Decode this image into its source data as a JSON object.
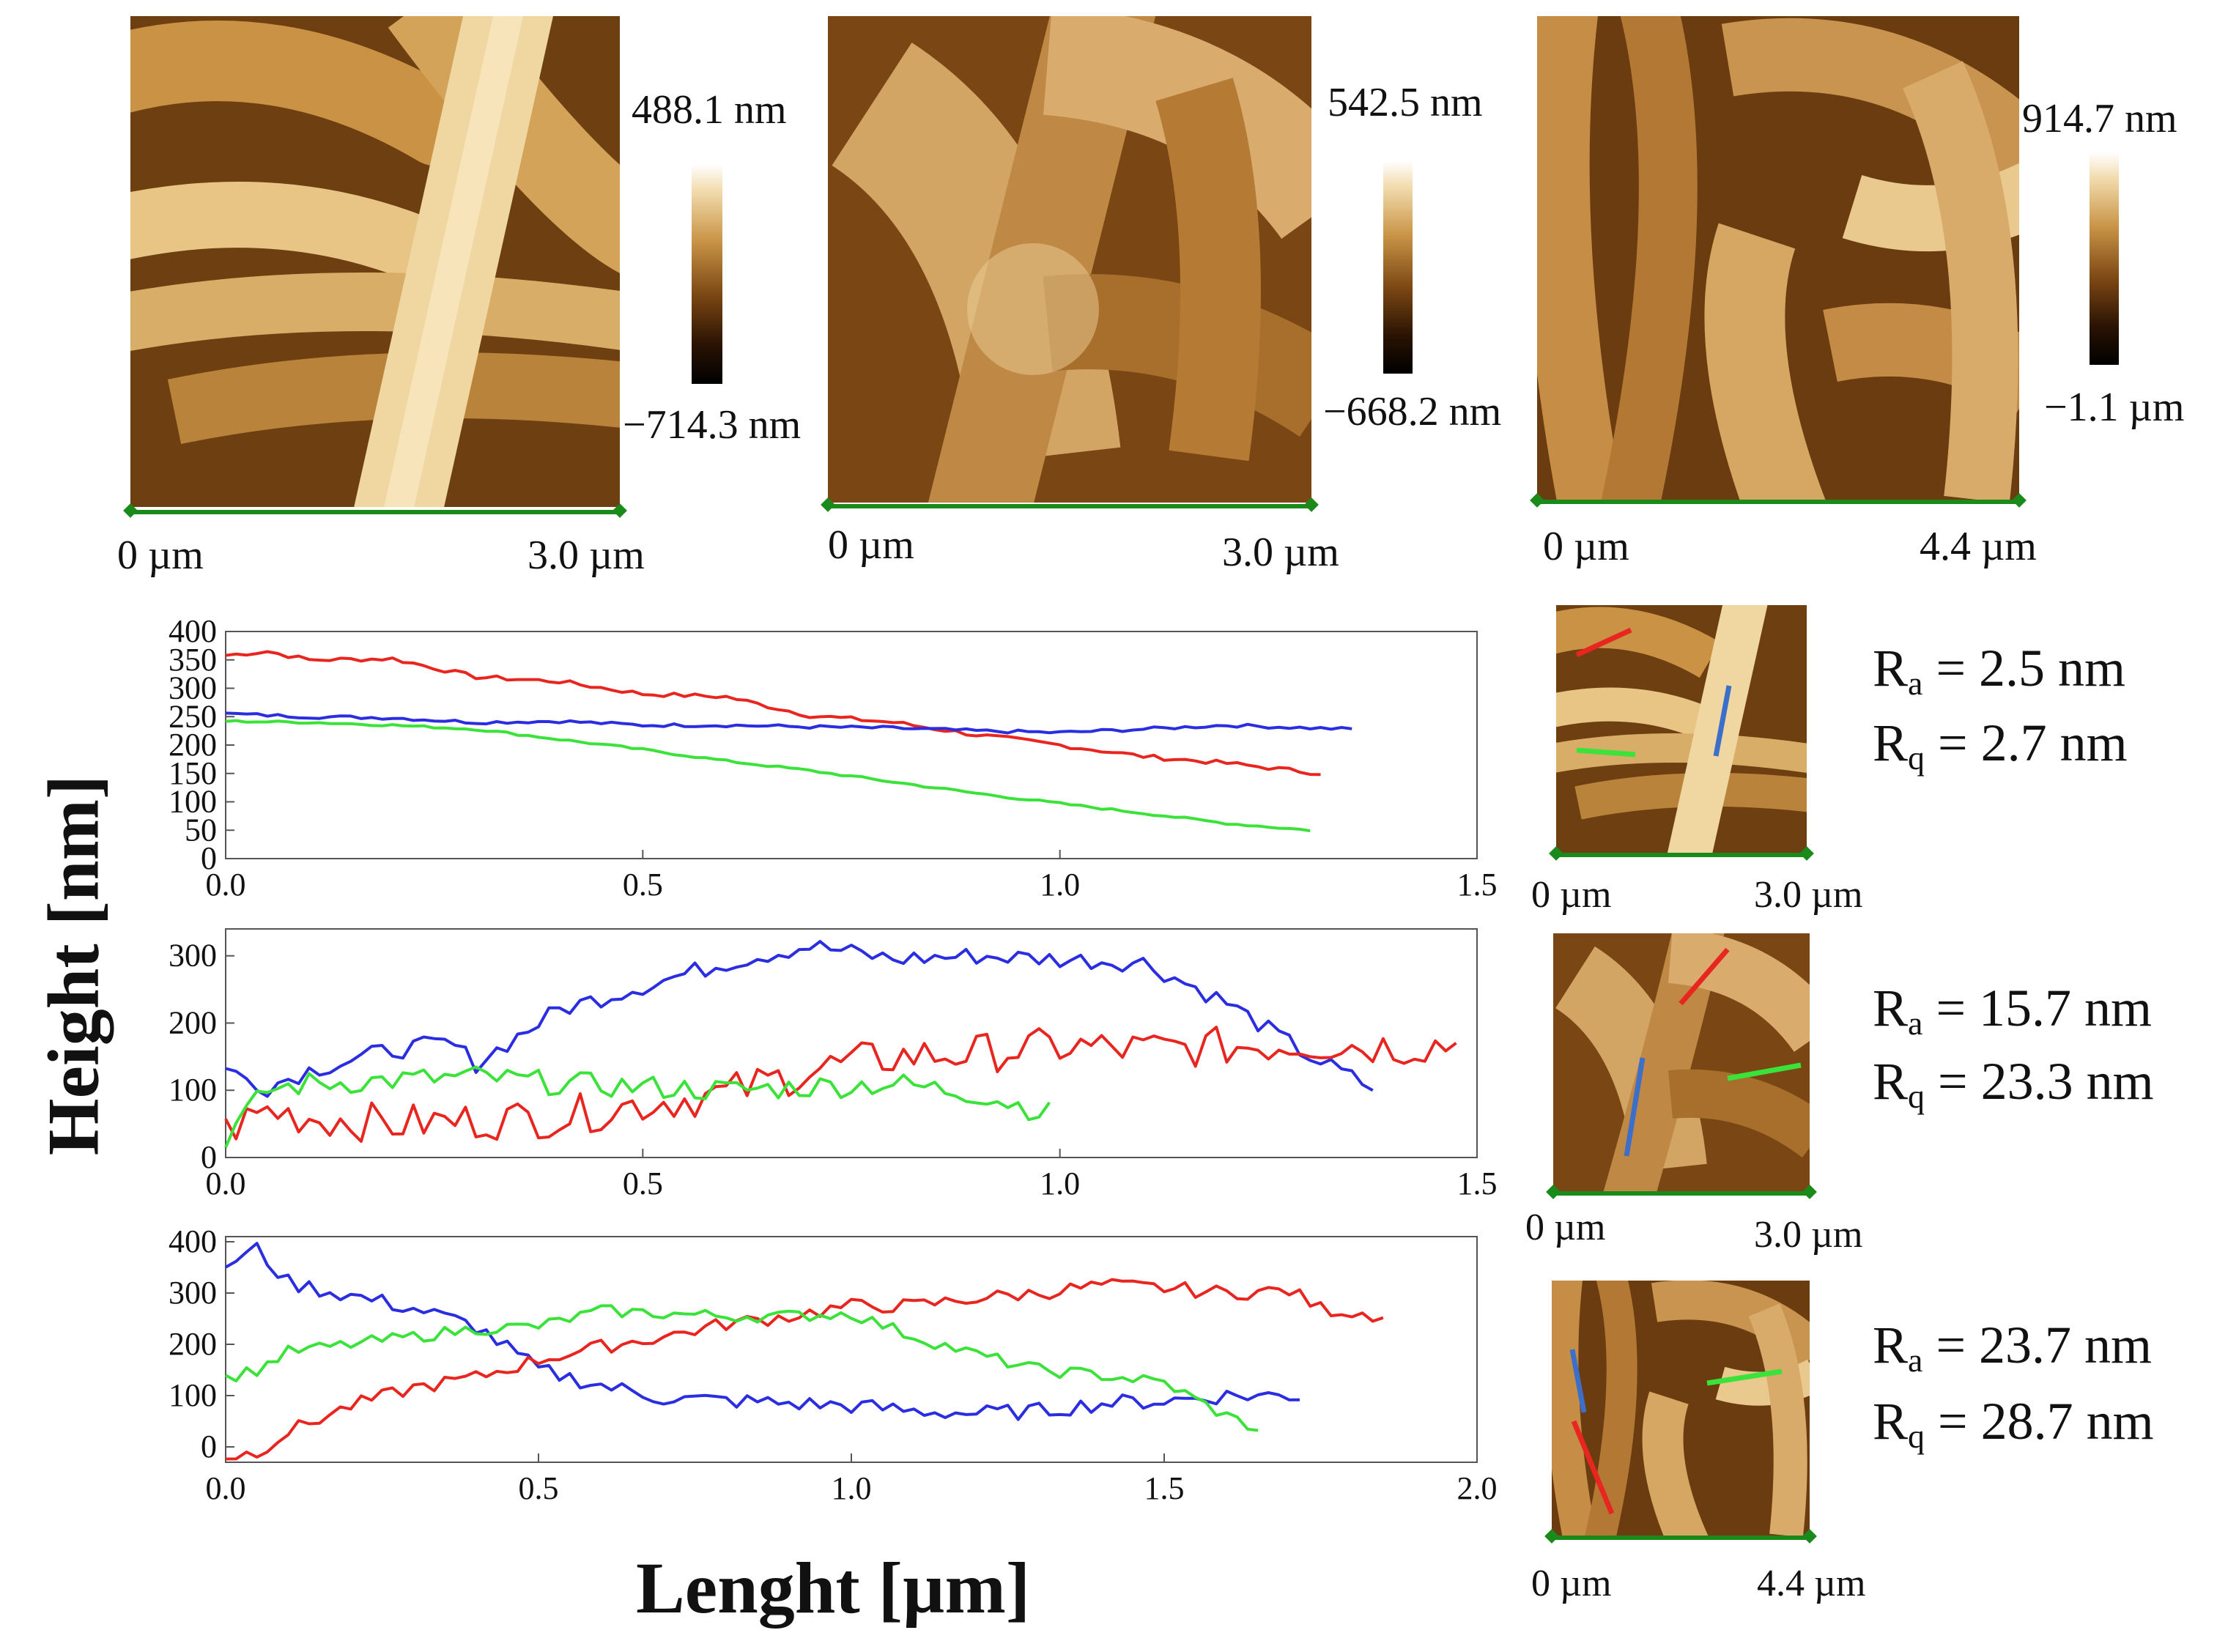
{
  "figure": {
    "y_axis_label": "Height [nm]",
    "x_axis_label": "Lenght [µm]"
  },
  "afm_images": [
    {
      "scale_start": "0 µm",
      "scale_end": "3.0 µm",
      "cbar_max": "488.1 nm",
      "cbar_min": "−714.3 nm"
    },
    {
      "scale_start": "0 µm",
      "scale_end": "3.0 µm",
      "cbar_max": "542.5 nm",
      "cbar_min": "−668.2 nm"
    },
    {
      "scale_start": "0 µm",
      "scale_end": "4.4 µm",
      "cbar_max": "914.7 nm",
      "cbar_min": "−1.1 µm"
    }
  ],
  "thumbnails": [
    {
      "scale_start": "0 µm",
      "scale_end": "3.0 µm",
      "ra_label": "R",
      "ra_sub": "a",
      "ra_value": " = 2.5 nm",
      "rq_label": "R",
      "rq_sub": "q",
      "rq_value": " = 2.7 nm"
    },
    {
      "scale_start": "0 µm",
      "scale_end": "3.0 µm",
      "ra_label": "R",
      "ra_sub": "a",
      "ra_value": " = 15.7 nm",
      "rq_label": "R",
      "rq_sub": "q",
      "rq_value": " = 23.3 nm"
    },
    {
      "scale_start": "0 µm",
      "scale_end": "4.4 µm",
      "ra_label": "R",
      "ra_sub": "a",
      "ra_value": " = 23.7 nm",
      "rq_label": "R",
      "rq_sub": "q",
      "rq_value": " = 28.7 nm"
    }
  ],
  "colors": {
    "red": "#e8261f",
    "blue": "#2a2ee0",
    "green": "#3ae23a",
    "scalebar": "#1a8a1a"
  },
  "chart_data": [
    {
      "type": "line",
      "title": "",
      "xlabel": "Lenght [µm]",
      "ylabel": "Height [nm]",
      "xlim": [
        0,
        1.5
      ],
      "ylim": [
        0,
        400
      ],
      "xticks": [
        0.0,
        0.5,
        1.0,
        1.5
      ],
      "xtick_labels": [
        "0.0",
        "0.5",
        "1.0",
        "1.5"
      ],
      "yticks": [
        0,
        50,
        100,
        150,
        200,
        250,
        300,
        350,
        400
      ],
      "ytick_labels": [
        "0",
        "50",
        "100",
        "150",
        "200",
        "250",
        "300",
        "350",
        "400"
      ],
      "series": [
        {
          "name": "red",
          "color": "#e8261f",
          "noise": 4,
          "x": [
            0.0,
            0.05,
            0.1,
            0.2,
            0.3,
            0.4,
            0.5,
            0.6,
            0.7,
            0.8,
            0.9,
            1.0,
            1.1,
            1.2,
            1.3,
            1.32
          ],
          "y": [
            358,
            365,
            350,
            352,
            320,
            312,
            290,
            285,
            252,
            240,
            218,
            200,
            180,
            168,
            152,
            150
          ]
        },
        {
          "name": "blue",
          "color": "#2a2ee0",
          "noise": 3,
          "x": [
            0.0,
            0.1,
            0.2,
            0.3,
            0.4,
            0.5,
            0.6,
            0.7,
            0.8,
            0.9,
            1.0,
            1.1,
            1.2,
            1.3,
            1.35
          ],
          "y": [
            255,
            250,
            248,
            240,
            242,
            235,
            235,
            232,
            230,
            225,
            222,
            228,
            235,
            230,
            228
          ]
        },
        {
          "name": "green",
          "color": "#3ae23a",
          "noise": 2,
          "x": [
            0.0,
            0.1,
            0.2,
            0.3,
            0.4,
            0.5,
            0.6,
            0.7,
            0.8,
            0.9,
            1.0,
            1.1,
            1.2,
            1.3,
            1.31
          ],
          "y": [
            242,
            240,
            235,
            228,
            210,
            192,
            172,
            155,
            135,
            115,
            97,
            80,
            62,
            50,
            48
          ]
        }
      ]
    },
    {
      "type": "line",
      "title": "",
      "xlabel": "Lenght [µm]",
      "ylabel": "Height [nm]",
      "xlim": [
        0,
        1.5
      ],
      "ylim": [
        0,
        340
      ],
      "xticks": [
        0.0,
        0.5,
        1.0,
        1.5
      ],
      "xtick_labels": [
        "0.0",
        "0.5",
        "1.0",
        "1.5"
      ],
      "yticks": [
        0,
        100,
        200,
        300
      ],
      "ytick_labels": [
        "0",
        "100",
        "200",
        "300"
      ],
      "series": [
        {
          "name": "blue",
          "color": "#2a2ee0",
          "noise": 14,
          "x": [
            0.0,
            0.05,
            0.1,
            0.2,
            0.27,
            0.3,
            0.4,
            0.5,
            0.6,
            0.7,
            0.8,
            0.9,
            1.0,
            1.1,
            1.2,
            1.3,
            1.38
          ],
          "y": [
            130,
            105,
            130,
            160,
            170,
            140,
            220,
            255,
            290,
            315,
            295,
            300,
            295,
            290,
            230,
            150,
            100
          ]
        },
        {
          "name": "red",
          "color": "#e8261f",
          "noise": 30,
          "x": [
            0.0,
            0.05,
            0.1,
            0.2,
            0.3,
            0.4,
            0.5,
            0.6,
            0.7,
            0.8,
            0.9,
            1.0,
            1.1,
            1.2,
            1.3,
            1.4,
            1.48
          ],
          "y": [
            40,
            70,
            60,
            50,
            55,
            60,
            80,
            95,
            130,
            150,
            155,
            165,
            160,
            165,
            170,
            165,
            170
          ]
        },
        {
          "name": "green",
          "color": "#3ae23a",
          "noise": 18,
          "x": [
            0.0,
            0.05,
            0.1,
            0.2,
            0.3,
            0.4,
            0.5,
            0.6,
            0.7,
            0.8,
            0.9,
            0.99
          ],
          "y": [
            30,
            100,
            110,
            115,
            120,
            110,
            105,
            100,
            105,
            110,
            95,
            65
          ]
        }
      ]
    },
    {
      "type": "line",
      "title": "",
      "xlabel": "Lenght [µm]",
      "ylabel": "Height [nm]",
      "xlim": [
        0,
        2.0
      ],
      "ylim": [
        -30,
        410
      ],
      "xticks": [
        0.0,
        0.5,
        1.0,
        1.5,
        2.0
      ],
      "xtick_labels": [
        "0.0",
        "0.5",
        "1.0",
        "1.5",
        "2.0"
      ],
      "yticks": [
        0,
        100,
        200,
        300,
        400
      ],
      "ytick_labels": [
        "0",
        "100",
        "200",
        "300",
        "400"
      ],
      "series": [
        {
          "name": "blue",
          "color": "#2a2ee0",
          "noise": 16,
          "x": [
            0.0,
            0.05,
            0.1,
            0.2,
            0.3,
            0.4,
            0.5,
            0.6,
            0.7,
            0.8,
            0.9,
            1.0,
            1.1,
            1.2,
            1.3,
            1.4,
            1.5,
            1.6,
            1.72
          ],
          "y": [
            355,
            385,
            320,
            295,
            270,
            235,
            150,
            120,
            95,
            90,
            85,
            80,
            70,
            65,
            70,
            85,
            90,
            100,
            100
          ]
        },
        {
          "name": "red",
          "color": "#e8261f",
          "noise": 14,
          "x": [
            0.0,
            0.05,
            0.1,
            0.2,
            0.3,
            0.4,
            0.5,
            0.6,
            0.7,
            0.8,
            0.9,
            1.0,
            1.1,
            1.2,
            1.3,
            1.4,
            1.5,
            1.6,
            1.7,
            1.75,
            1.86
          ],
          "y": [
            -20,
            -10,
            30,
            80,
            115,
            135,
            170,
            195,
            215,
            240,
            255,
            275,
            275,
            290,
            300,
            315,
            310,
            300,
            305,
            270,
            255
          ]
        },
        {
          "name": "green",
          "color": "#3ae23a",
          "noise": 12,
          "x": [
            0.0,
            0.05,
            0.1,
            0.2,
            0.3,
            0.4,
            0.5,
            0.6,
            0.7,
            0.8,
            0.9,
            1.0,
            1.1,
            1.2,
            1.3,
            1.4,
            1.5,
            1.6,
            1.65
          ],
          "y": [
            135,
            150,
            185,
            200,
            215,
            230,
            235,
            265,
            260,
            255,
            255,
            260,
            215,
            180,
            150,
            140,
            125,
            60,
            35
          ]
        }
      ]
    }
  ]
}
